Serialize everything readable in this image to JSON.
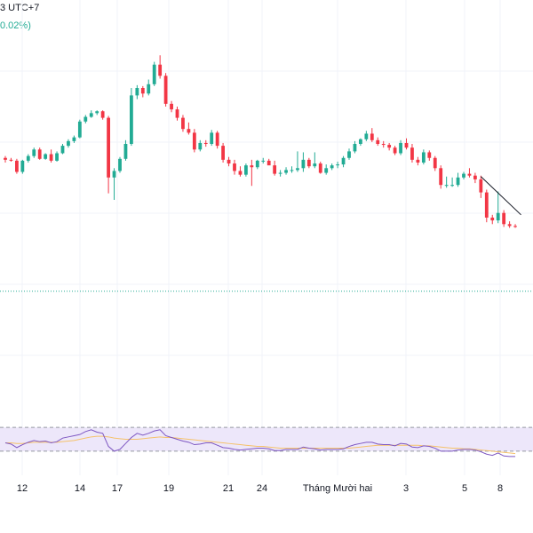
{
  "header": {
    "timezone_text": "3 UTC+7",
    "change_text": "0.02%)"
  },
  "colors": {
    "up": "#22ab94",
    "down": "#f23645",
    "rsi_line": "#7e57c2",
    "rsi_ma": "#f5c26b",
    "rsi_band": "#ede7fa",
    "trendline": "#131722",
    "dotted": "#22ab94"
  },
  "chart_data": {
    "type": "candlestick",
    "price_scale": "not shown (axis cropped)",
    "x_tick_labels": [
      "12",
      "14",
      "17",
      "19",
      "21",
      "24",
      "Tháng Mười hai",
      "3",
      "5",
      "8"
    ],
    "candles": [
      {
        "o": 0.5,
        "h": 0.7,
        "l": 0.0,
        "c": 0.3
      },
      {
        "o": 0.3,
        "h": 0.5,
        "l": 0.1,
        "c": 0.2
      },
      {
        "o": 0.2,
        "h": 0.4,
        "l": -1.2,
        "c": -1.0
      },
      {
        "o": -1.0,
        "h": 0.3,
        "l": -1.2,
        "c": 0.2
      },
      {
        "o": 0.2,
        "h": 0.9,
        "l": 0.0,
        "c": 0.7
      },
      {
        "o": 0.7,
        "h": 1.6,
        "l": 0.5,
        "c": 1.4
      },
      {
        "o": 1.4,
        "h": 1.6,
        "l": 0.3,
        "c": 0.4
      },
      {
        "o": 0.4,
        "h": 1.0,
        "l": 0.3,
        "c": 0.9
      },
      {
        "o": 0.9,
        "h": 1.4,
        "l": 0.0,
        "c": 0.2
      },
      {
        "o": 0.2,
        "h": 1.2,
        "l": 0.1,
        "c": 1.0
      },
      {
        "o": 1.0,
        "h": 2.0,
        "l": 0.9,
        "c": 1.8
      },
      {
        "o": 1.8,
        "h": 2.5,
        "l": 1.6,
        "c": 2.3
      },
      {
        "o": 2.3,
        "h": 2.9,
        "l": 2.1,
        "c": 2.7
      },
      {
        "o": 2.7,
        "h": 4.6,
        "l": 2.6,
        "c": 4.4
      },
      {
        "o": 4.4,
        "h": 5.1,
        "l": 4.2,
        "c": 4.9
      },
      {
        "o": 4.9,
        "h": 5.6,
        "l": 4.8,
        "c": 5.3
      },
      {
        "o": 5.3,
        "h": 5.6,
        "l": 5.1,
        "c": 5.5
      },
      {
        "o": 5.5,
        "h": 5.6,
        "l": 4.6,
        "c": 4.8
      },
      {
        "o": 4.8,
        "h": 5.0,
        "l": -3.3,
        "c": -1.6
      },
      {
        "o": -1.6,
        "h": -0.6,
        "l": -4.0,
        "c": -0.9
      },
      {
        "o": -0.9,
        "h": 0.6,
        "l": -1.1,
        "c": 0.4
      },
      {
        "o": 0.4,
        "h": 2.4,
        "l": 0.2,
        "c": 2.0
      },
      {
        "o": 2.0,
        "h": 8.0,
        "l": 1.8,
        "c": 7.2
      },
      {
        "o": 7.2,
        "h": 8.3,
        "l": 6.8,
        "c": 8.0
      },
      {
        "o": 8.0,
        "h": 8.2,
        "l": 7.0,
        "c": 7.4
      },
      {
        "o": 7.4,
        "h": 8.9,
        "l": 7.2,
        "c": 8.4
      },
      {
        "o": 8.4,
        "h": 10.8,
        "l": 8.2,
        "c": 10.5
      },
      {
        "o": 10.5,
        "h": 11.5,
        "l": 9.0,
        "c": 9.3
      },
      {
        "o": 9.3,
        "h": 9.6,
        "l": 6.0,
        "c": 6.3
      },
      {
        "o": 6.3,
        "h": 6.6,
        "l": 5.4,
        "c": 5.7
      },
      {
        "o": 5.7,
        "h": 6.0,
        "l": 4.5,
        "c": 4.8
      },
      {
        "o": 4.8,
        "h": 5.1,
        "l": 3.3,
        "c": 3.6
      },
      {
        "o": 3.6,
        "h": 4.3,
        "l": 3.0,
        "c": 3.2
      },
      {
        "o": 3.2,
        "h": 3.6,
        "l": 1.1,
        "c": 1.4
      },
      {
        "o": 1.4,
        "h": 2.4,
        "l": 1.2,
        "c": 2.1
      },
      {
        "o": 2.1,
        "h": 2.4,
        "l": 1.7,
        "c": 2.0
      },
      {
        "o": 2.0,
        "h": 3.5,
        "l": 1.8,
        "c": 3.2
      },
      {
        "o": 3.2,
        "h": 3.4,
        "l": 1.5,
        "c": 1.8
      },
      {
        "o": 1.8,
        "h": 2.1,
        "l": 0.0,
        "c": 0.3
      },
      {
        "o": 0.3,
        "h": 0.6,
        "l": -0.4,
        "c": -0.1
      },
      {
        "o": -0.1,
        "h": 0.3,
        "l": -1.3,
        "c": -0.9
      },
      {
        "o": -0.9,
        "h": -0.4,
        "l": -1.5,
        "c": -1.3
      },
      {
        "o": -1.3,
        "h": -0.1,
        "l": -1.5,
        "c": -0.3
      },
      {
        "o": -0.3,
        "h": 0.3,
        "l": -2.5,
        "c": -0.5
      },
      {
        "o": -0.5,
        "h": 0.3,
        "l": -0.7,
        "c": 0.2
      },
      {
        "o": 0.2,
        "h": 0.5,
        "l": -0.1,
        "c": 0.2
      },
      {
        "o": 0.2,
        "h": 0.4,
        "l": -0.2,
        "c": -0.3
      },
      {
        "o": -0.3,
        "h": 0.2,
        "l": -1.4,
        "c": -1.2
      },
      {
        "o": -1.2,
        "h": -0.8,
        "l": -1.5,
        "c": -1.1
      },
      {
        "o": -1.1,
        "h": -0.5,
        "l": -1.3,
        "c": -0.8
      },
      {
        "o": -0.8,
        "h": -0.4,
        "l": -1.1,
        "c": -0.8
      },
      {
        "o": -0.8,
        "h": 1.2,
        "l": -1.0,
        "c": -0.6
      },
      {
        "o": -0.6,
        "h": 1.1,
        "l": -1.0,
        "c": 0.3
      },
      {
        "o": 0.3,
        "h": 0.5,
        "l": -0.6,
        "c": -0.4
      },
      {
        "o": -0.4,
        "h": 1.1,
        "l": -0.6,
        "c": -0.1
      },
      {
        "o": -0.1,
        "h": 0.1,
        "l": -1.2,
        "c": -1.1
      },
      {
        "o": -1.1,
        "h": -0.2,
        "l": -1.3,
        "c": -0.6
      },
      {
        "o": -0.6,
        "h": -0.1,
        "l": -0.8,
        "c": -0.3
      },
      {
        "o": -0.3,
        "h": 0.1,
        "l": -0.6,
        "c": -0.2
      },
      {
        "o": -0.2,
        "h": 0.7,
        "l": -0.5,
        "c": 0.5
      },
      {
        "o": 0.5,
        "h": 1.5,
        "l": 0.3,
        "c": 1.2
      },
      {
        "o": 1.2,
        "h": 2.3,
        "l": 1.0,
        "c": 2.0
      },
      {
        "o": 2.0,
        "h": 2.6,
        "l": 1.8,
        "c": 2.5
      },
      {
        "o": 2.5,
        "h": 3.4,
        "l": 2.3,
        "c": 3.1
      },
      {
        "o": 3.1,
        "h": 3.7,
        "l": 2.2,
        "c": 2.4
      },
      {
        "o": 2.4,
        "h": 2.7,
        "l": 1.8,
        "c": 2.0
      },
      {
        "o": 2.0,
        "h": 2.3,
        "l": 1.6,
        "c": 1.9
      },
      {
        "o": 1.9,
        "h": 2.1,
        "l": 1.3,
        "c": 1.6
      },
      {
        "o": 1.6,
        "h": 1.8,
        "l": 0.8,
        "c": 1.0
      },
      {
        "o": 1.0,
        "h": 2.4,
        "l": 0.8,
        "c": 2.1
      },
      {
        "o": 2.1,
        "h": 2.6,
        "l": 1.4,
        "c": 1.6
      },
      {
        "o": 1.6,
        "h": 2.0,
        "l": 0.0,
        "c": 0.3
      },
      {
        "o": 0.3,
        "h": 0.6,
        "l": -0.3,
        "c": 0.0
      },
      {
        "o": 0.0,
        "h": 1.4,
        "l": -0.2,
        "c": 1.1
      },
      {
        "o": 1.1,
        "h": 1.3,
        "l": 0.2,
        "c": 0.5
      },
      {
        "o": 0.5,
        "h": 0.7,
        "l": -0.9,
        "c": -0.6
      },
      {
        "o": -0.6,
        "h": -0.3,
        "l": -2.8,
        "c": -2.4
      },
      {
        "o": -2.4,
        "h": -1.5,
        "l": -2.7,
        "c": -2.4
      },
      {
        "o": -2.4,
        "h": -1.6,
        "l": -2.6,
        "c": -2.4
      },
      {
        "o": -2.4,
        "h": -1.1,
        "l": -2.6,
        "c": -1.6
      },
      {
        "o": -1.6,
        "h": -1.0,
        "l": -1.8,
        "c": -1.2
      },
      {
        "o": -1.2,
        "h": -0.6,
        "l": -1.6,
        "c": -1.4
      },
      {
        "o": -1.4,
        "h": -1.1,
        "l": -2.2,
        "c": -1.8
      },
      {
        "o": -1.8,
        "h": -1.4,
        "l": -3.8,
        "c": -3.2
      },
      {
        "o": -3.2,
        "h": -2.9,
        "l": -6.4,
        "c": -5.9
      },
      {
        "o": -5.9,
        "h": -5.6,
        "l": -6.6,
        "c": -6.2
      },
      {
        "o": -6.2,
        "h": -3.1,
        "l": -6.5,
        "c": -5.4
      },
      {
        "o": -5.4,
        "h": -5.1,
        "l": -6.9,
        "c": -6.6
      },
      {
        "o": -6.6,
        "h": -6.3,
        "l": -7.0,
        "c": -6.8
      },
      {
        "o": -6.8,
        "h": -6.6,
        "l": -7.0,
        "c": -6.9
      }
    ],
    "rsi": [
      44,
      42,
      36,
      41,
      45,
      48,
      46,
      47,
      44,
      46,
      52,
      54,
      56,
      58,
      63,
      66,
      62,
      60,
      38,
      30,
      33,
      43,
      53,
      60,
      57,
      60,
      64,
      66,
      56,
      53,
      50,
      47,
      45,
      41,
      42,
      44,
      44,
      40,
      36,
      35,
      33,
      32,
      33,
      34,
      35,
      35,
      34,
      31,
      31,
      33,
      33,
      33,
      37,
      35,
      34,
      32,
      33,
      33,
      33,
      34,
      38,
      41,
      43,
      45,
      45,
      42,
      41,
      41,
      39,
      43,
      42,
      37,
      36,
      39,
      38,
      35,
      30,
      30,
      30,
      32,
      33,
      33,
      32,
      29,
      25,
      23,
      27,
      22,
      21,
      21
    ],
    "rsi_ma": [
      44,
      44,
      43,
      43,
      44,
      45,
      45,
      45,
      45,
      45,
      46,
      47,
      48,
      50,
      52,
      54,
      55,
      55,
      54,
      52,
      51,
      50,
      50,
      50,
      51,
      52,
      53,
      54,
      53,
      53,
      52,
      51,
      50,
      49,
      48,
      47,
      46,
      45,
      44,
      43,
      42,
      41,
      40,
      39,
      38,
      38,
      37,
      36,
      35,
      35,
      35,
      35,
      35,
      35,
      35,
      35,
      35,
      35,
      35,
      35,
      35,
      36,
      37,
      38,
      39,
      40,
      40,
      40,
      40,
      40,
      40,
      40,
      40,
      39,
      39,
      38,
      37,
      36,
      35,
      35,
      34,
      34,
      33,
      32,
      31,
      30,
      29,
      28,
      27,
      26
    ],
    "rsi_bands": [
      30,
      70
    ],
    "rsi_range": [
      0,
      100
    ],
    "trendline_points": [
      [
        83,
        -1.5
      ],
      [
        90,
        -5.6
      ]
    ],
    "dotted_reference_price": -13.8
  }
}
